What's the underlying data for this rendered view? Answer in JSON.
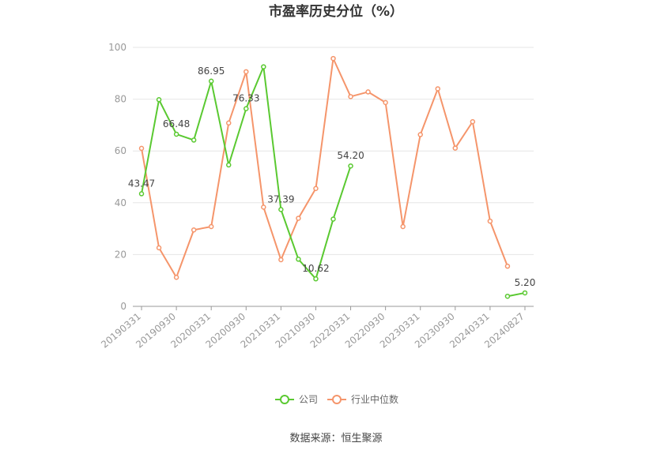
{
  "chart_data": {
    "type": "line",
    "title": "市盈率历史分位（%）",
    "source": "数据来源：恒生聚源",
    "ylim": [
      0,
      100
    ],
    "yticks": [
      0,
      20,
      40,
      60,
      80,
      100
    ],
    "x": [
      "20190331",
      "20190630",
      "20190930",
      "20191231",
      "20200331",
      "20200630",
      "20200930",
      "20201231",
      "20210331",
      "20210630",
      "20210930",
      "20211231",
      "20220331",
      "20220630",
      "20220930",
      "20221231",
      "20230331",
      "20230630",
      "20230930",
      "20231231",
      "20240331",
      "20240630",
      "20240827"
    ],
    "xtick_labels": [
      "20190331",
      "20190930",
      "20200331",
      "20200930",
      "20210331",
      "20210930",
      "20220331",
      "20220930",
      "20230331",
      "20230930",
      "20240331",
      "20240827"
    ],
    "series": [
      {
        "name": "公司",
        "color": "#5ac931",
        "values": [
          43.47,
          79.8,
          66.48,
          64.2,
          86.95,
          54.6,
          76.33,
          92.5,
          37.39,
          18.2,
          10.62,
          33.7,
          54.2,
          null,
          null,
          null,
          null,
          null,
          null,
          null,
          null,
          3.9,
          5.2
        ],
        "labels": [
          "43.47",
          null,
          "66.48",
          null,
          "86.95",
          null,
          "76.33",
          null,
          "37.39",
          null,
          "10.62",
          null,
          "54.20",
          null,
          null,
          null,
          null,
          null,
          null,
          null,
          null,
          null,
          "5.20"
        ]
      },
      {
        "name": "行业中位数",
        "color": "#f5956b",
        "values": [
          61.0,
          22.6,
          11.2,
          29.5,
          30.8,
          70.8,
          90.6,
          38.3,
          18.0,
          34.0,
          45.5,
          95.7,
          81.0,
          82.8,
          78.7,
          30.8,
          66.3,
          84.0,
          61.1,
          71.3,
          32.9,
          15.5,
          null
        ],
        "labels": []
      }
    ],
    "legend": "bottom-center",
    "grid": true
  }
}
